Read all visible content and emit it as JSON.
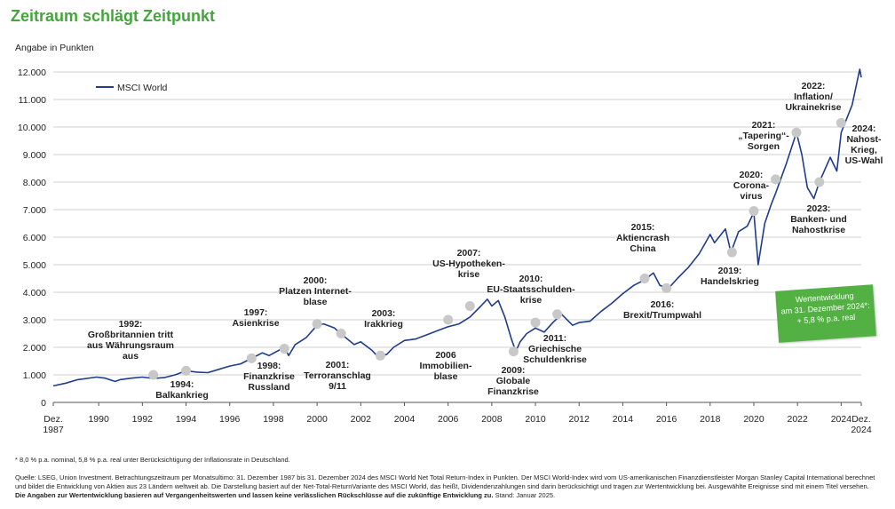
{
  "title": "Zeitraum schlägt Zeitpunkt",
  "unit_label": "Angabe in Punkten",
  "perf_box": {
    "line1": "Wertentwicklung",
    "line2": "am 31. Dezember 2024*:",
    "line3": "+ 5,8 % p.a. real"
  },
  "footnote": "* 8,0 % p.a. nominal, 5,8 % p.a. real unter Berücksichtigung der Inflationsrate in Deutschland.",
  "source_text": "Quelle: LSEG, Union Investment. Betrachtungszeitraum per Monatsultimo: 31. Dezember 1987 bis 31. Dezember 2024 des MSCI World Net Total Return-Index in Punkten. Der MSCI World-Index wird vom US-amerikanischen Finanzdienstleister Morgan Stanley Capital International berechnet und bildet die Entwicklung von Aktien aus 23 Ländern weltweit ab. Die Darstellung basiert auf der Net-Total-ReturnVariante des MSCI World, das heißt, Dividendenzahlungen sind darin berücksichtigt und tragen zur Wertentwicklung bei. Ausgewählte Ereignisse sind mit einem Titel versehen.",
  "source_bold": "Die Angaben zur Wertentwicklung basieren auf Vergangenheitswerten und lassen keine verlässlichen Rückschlüsse auf die zukünftige Entwicklung zu.",
  "source_end": "Stand: Januar 2025.",
  "colors": {
    "title": "#43a63a",
    "line": "#1f3c8f",
    "marker": "#c8c8c8",
    "box": "#52b142",
    "grid": "#d0d0d0"
  },
  "chart_data": {
    "type": "line",
    "title": "Zeitraum schlägt Zeitpunkt",
    "ylabel": "Angabe in Punkten",
    "xlabel": "",
    "ylim": [
      0,
      12000
    ],
    "xlim": [
      1987.92,
      2024.92
    ],
    "grid": true,
    "legend_position": "top-left",
    "yticks": [
      {
        "v": 0,
        "label": "0"
      },
      {
        "v": 1000,
        "label": "1.000"
      },
      {
        "v": 2000,
        "label": "2.000"
      },
      {
        "v": 3000,
        "label": "3.000"
      },
      {
        "v": 4000,
        "label": "4.000"
      },
      {
        "v": 5000,
        "label": "5.000"
      },
      {
        "v": 6000,
        "label": "6.000"
      },
      {
        "v": 7000,
        "label": "7.000"
      },
      {
        "v": 8000,
        "label": "8.000"
      },
      {
        "v": 9000,
        "label": "9.000"
      },
      {
        "v": 10000,
        "label": "10.000"
      },
      {
        "v": 11000,
        "label": "11.000"
      },
      {
        "v": 12000,
        "label": "12.000"
      }
    ],
    "xticks": [
      {
        "v": 1987.92,
        "lines": [
          "Dez.",
          "1987"
        ]
      },
      {
        "v": 1990,
        "lines": [
          "1990"
        ]
      },
      {
        "v": 1992,
        "lines": [
          "1992"
        ]
      },
      {
        "v": 1994,
        "lines": [
          "1994"
        ]
      },
      {
        "v": 1996,
        "lines": [
          "1996"
        ]
      },
      {
        "v": 1998,
        "lines": [
          "1998"
        ]
      },
      {
        "v": 2000,
        "lines": [
          "2000"
        ]
      },
      {
        "v": 2002,
        "lines": [
          "2002"
        ]
      },
      {
        "v": 2004,
        "lines": [
          "2004"
        ]
      },
      {
        "v": 2006,
        "lines": [
          "2006"
        ]
      },
      {
        "v": 2008,
        "lines": [
          "2008"
        ]
      },
      {
        "v": 2010,
        "lines": [
          "2010"
        ]
      },
      {
        "v": 2012,
        "lines": [
          "2012"
        ]
      },
      {
        "v": 2014,
        "lines": [
          "2014"
        ]
      },
      {
        "v": 2016,
        "lines": [
          "2016"
        ]
      },
      {
        "v": 2018,
        "lines": [
          "2018"
        ]
      },
      {
        "v": 2020,
        "lines": [
          "2020"
        ]
      },
      {
        "v": 2022,
        "lines": [
          "2022"
        ]
      },
      {
        "v": 2024,
        "lines": [
          "2024"
        ]
      },
      {
        "v": 2024.92,
        "lines": [
          "Dez.",
          "2024"
        ]
      }
    ],
    "series": [
      {
        "name": "MSCI World",
        "color": "#1f3c8f",
        "points": [
          [
            1987.92,
            600
          ],
          [
            1988.5,
            700
          ],
          [
            1989,
            820
          ],
          [
            1989.9,
            920
          ],
          [
            1990.3,
            880
          ],
          [
            1990.75,
            760
          ],
          [
            1991,
            830
          ],
          [
            1991.5,
            880
          ],
          [
            1992,
            920
          ],
          [
            1992.5,
            870
          ],
          [
            1993,
            900
          ],
          [
            1993.5,
            1000
          ],
          [
            1994,
            1150
          ],
          [
            1994.5,
            1100
          ],
          [
            1995,
            1080
          ],
          [
            1995.5,
            1200
          ],
          [
            1996,
            1320
          ],
          [
            1996.5,
            1400
          ],
          [
            1997,
            1600
          ],
          [
            1997.5,
            1800
          ],
          [
            1997.8,
            1700
          ],
          [
            1998.5,
            2000
          ],
          [
            1998.7,
            1700
          ],
          [
            1999,
            2100
          ],
          [
            1999.5,
            2350
          ],
          [
            2000,
            2800
          ],
          [
            2000.3,
            2850
          ],
          [
            2000.8,
            2700
          ],
          [
            2001,
            2550
          ],
          [
            2001.7,
            2100
          ],
          [
            2002,
            2200
          ],
          [
            2002.5,
            1900
          ],
          [
            2002.8,
            1650
          ],
          [
            2003.2,
            1750
          ],
          [
            2003.5,
            2000
          ],
          [
            2004,
            2250
          ],
          [
            2004.5,
            2300
          ],
          [
            2005,
            2450
          ],
          [
            2005.5,
            2600
          ],
          [
            2006,
            2750
          ],
          [
            2006.5,
            2850
          ],
          [
            2007,
            3100
          ],
          [
            2007.5,
            3500
          ],
          [
            2007.8,
            3750
          ],
          [
            2008,
            3500
          ],
          [
            2008.3,
            3700
          ],
          [
            2008.6,
            3100
          ],
          [
            2008.9,
            2300
          ],
          [
            2009.1,
            1850
          ],
          [
            2009.3,
            2200
          ],
          [
            2009.6,
            2500
          ],
          [
            2010,
            2700
          ],
          [
            2010.4,
            2550
          ],
          [
            2010.8,
            2900
          ],
          [
            2011.2,
            3200
          ],
          [
            2011.7,
            2800
          ],
          [
            2012,
            2900
          ],
          [
            2012.5,
            2950
          ],
          [
            2013,
            3300
          ],
          [
            2013.5,
            3600
          ],
          [
            2014,
            3950
          ],
          [
            2014.5,
            4250
          ],
          [
            2015,
            4450
          ],
          [
            2015.4,
            4700
          ],
          [
            2015.7,
            4250
          ],
          [
            2016.1,
            4150
          ],
          [
            2016.5,
            4500
          ],
          [
            2017,
            4900
          ],
          [
            2017.5,
            5400
          ],
          [
            2018,
            6100
          ],
          [
            2018.2,
            5800
          ],
          [
            2018.7,
            6300
          ],
          [
            2018.95,
            5450
          ],
          [
            2019.3,
            6200
          ],
          [
            2019.7,
            6400
          ],
          [
            2020,
            6900
          ],
          [
            2020.2,
            5000
          ],
          [
            2020.5,
            6500
          ],
          [
            2020.8,
            7200
          ],
          [
            2021,
            7600
          ],
          [
            2021.5,
            8700
          ],
          [
            2021.95,
            9800
          ],
          [
            2022.2,
            9000
          ],
          [
            2022.45,
            7800
          ],
          [
            2022.75,
            7400
          ],
          [
            2023,
            8000
          ],
          [
            2023.5,
            8900
          ],
          [
            2023.8,
            8400
          ],
          [
            2024,
            9800
          ],
          [
            2024.5,
            10800
          ],
          [
            2024.85,
            12100
          ],
          [
            2024.92,
            11800
          ]
        ]
      }
    ],
    "event_markers": [
      [
        1992.5,
        1000
      ],
      [
        1994,
        1150
      ],
      [
        1997,
        1600
      ],
      [
        1998.5,
        1950
      ],
      [
        2000,
        2850
      ],
      [
        2001.1,
        2500
      ],
      [
        2002.9,
        1700
      ],
      [
        2006,
        3000
      ],
      [
        2007,
        3500
      ],
      [
        2009,
        1850
      ],
      [
        2010,
        2900
      ],
      [
        2011,
        3200
      ],
      [
        2015,
        4500
      ],
      [
        2016,
        4150
      ],
      [
        2019,
        5450
      ],
      [
        2020,
        6950
      ],
      [
        2021,
        8100
      ],
      [
        2021.95,
        9800
      ],
      [
        2023,
        8000
      ],
      [
        2024,
        10150
      ]
    ],
    "annotations": [
      {
        "year": "1992",
        "lines": [
          "1992:",
          "Großbritannien tritt",
          "aus Währungsraum",
          "aus"
        ]
      },
      {
        "year": "1994",
        "lines": [
          "1994:",
          "Balkankrieg"
        ]
      },
      {
        "year": "1997",
        "lines": [
          "1997:",
          "Asienkrise"
        ]
      },
      {
        "year": "1998",
        "lines": [
          "1998:",
          "Finanzkrise",
          "Russland"
        ]
      },
      {
        "year": "2000",
        "lines": [
          "2000:",
          "Platzen Internet-",
          "blase"
        ]
      },
      {
        "year": "2001",
        "lines": [
          "2001:",
          "Terroranschlag",
          "9/11"
        ]
      },
      {
        "year": "2003",
        "lines": [
          "2003:",
          "Irakkrieg"
        ]
      },
      {
        "year": "2006",
        "lines": [
          "2006",
          "Immobilien-",
          "blase"
        ]
      },
      {
        "year": "2007",
        "lines": [
          "2007:",
          "US-Hypotheken-",
          "krise"
        ]
      },
      {
        "year": "2009",
        "lines": [
          "2009:",
          "Globale",
          "Finanzkrise"
        ]
      },
      {
        "year": "2010",
        "lines": [
          "2010:",
          "EU-Staatsschulden-",
          "krise"
        ]
      },
      {
        "year": "2011",
        "lines": [
          "2011:",
          "Griechische",
          "Schuldenkrise"
        ]
      },
      {
        "year": "2015",
        "lines": [
          "2015:",
          "Aktiencrash",
          "China"
        ]
      },
      {
        "year": "2016",
        "lines": [
          "2016:",
          "Brexit/Trumpwahl"
        ]
      },
      {
        "year": "2019",
        "lines": [
          "2019:",
          "Handelskrieg"
        ]
      },
      {
        "year": "2020",
        "lines": [
          "2020:",
          "Corona-",
          "virus"
        ]
      },
      {
        "year": "2021",
        "lines": [
          "2021:",
          "„Tapering“-",
          "Sorgen"
        ]
      },
      {
        "year": "2022",
        "lines": [
          "2022:",
          "Inflation/",
          "Ukrainekrise"
        ]
      },
      {
        "year": "2023",
        "lines": [
          "2023:",
          "Banken- und",
          "Nahostkrise"
        ]
      },
      {
        "year": "2024",
        "lines": [
          "2024:",
          "Nahost-",
          "Krieg,",
          "US-Wahl"
        ]
      }
    ]
  }
}
